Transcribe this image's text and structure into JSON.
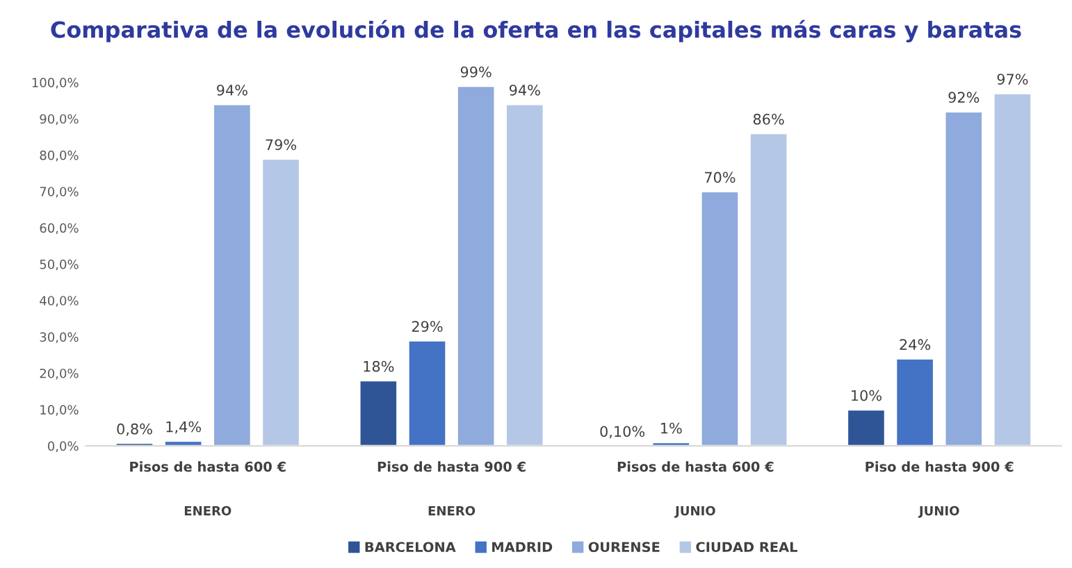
{
  "chart_data": {
    "type": "bar",
    "title": "Comparativa de la evolución de la oferta en las capitales más caras y baratas",
    "categories": [
      "Pisos de hasta 600 €",
      "Piso de hasta 900 €",
      "Pisos de hasta 600 €",
      "Piso de hasta 900 €"
    ],
    "annotations": [
      "ENERO",
      "ENERO",
      "JUNIO",
      "JUNIO"
    ],
    "series": [
      {
        "name": "BARCELONA",
        "color": "#2f5597",
        "values": [
          0.8,
          18,
          0.1,
          10
        ],
        "value_labels": [
          "0,8%",
          "18%",
          "0,10%",
          "10%"
        ]
      },
      {
        "name": "MADRID",
        "color": "#4472c4",
        "values": [
          1.4,
          29,
          1,
          24
        ],
        "value_labels": [
          "1,4%",
          "29%",
          "1%",
          "24%"
        ]
      },
      {
        "name": "OURENSE",
        "color": "#8faadc",
        "values": [
          94,
          99,
          70,
          92
        ],
        "value_labels": [
          "94%",
          "99%",
          "70%",
          "92%"
        ]
      },
      {
        "name": "CIUDAD REAL",
        "color": "#b4c7e7",
        "values": [
          79,
          94,
          86,
          97
        ],
        "value_labels": [
          "79%",
          "94%",
          "86%",
          "97%"
        ]
      }
    ],
    "ylim": [
      0,
      100
    ],
    "yticks": [
      {
        "value": 0,
        "label": "0,0%"
      },
      {
        "value": 10,
        "label": "10,0%"
      },
      {
        "value": 20,
        "label": "20,0%"
      },
      {
        "value": 30,
        "label": "30,0%"
      },
      {
        "value": 40,
        "label": "40,0%"
      },
      {
        "value": 50,
        "label": "50,0%"
      },
      {
        "value": 60,
        "label": "60,0%"
      },
      {
        "value": 70,
        "label": "70,0%"
      },
      {
        "value": 80,
        "label": "80,0%"
      },
      {
        "value": 90,
        "label": "90,0%"
      },
      {
        "value": 100,
        "label": "100,0%"
      }
    ],
    "grid": false,
    "legend": "bottom"
  }
}
